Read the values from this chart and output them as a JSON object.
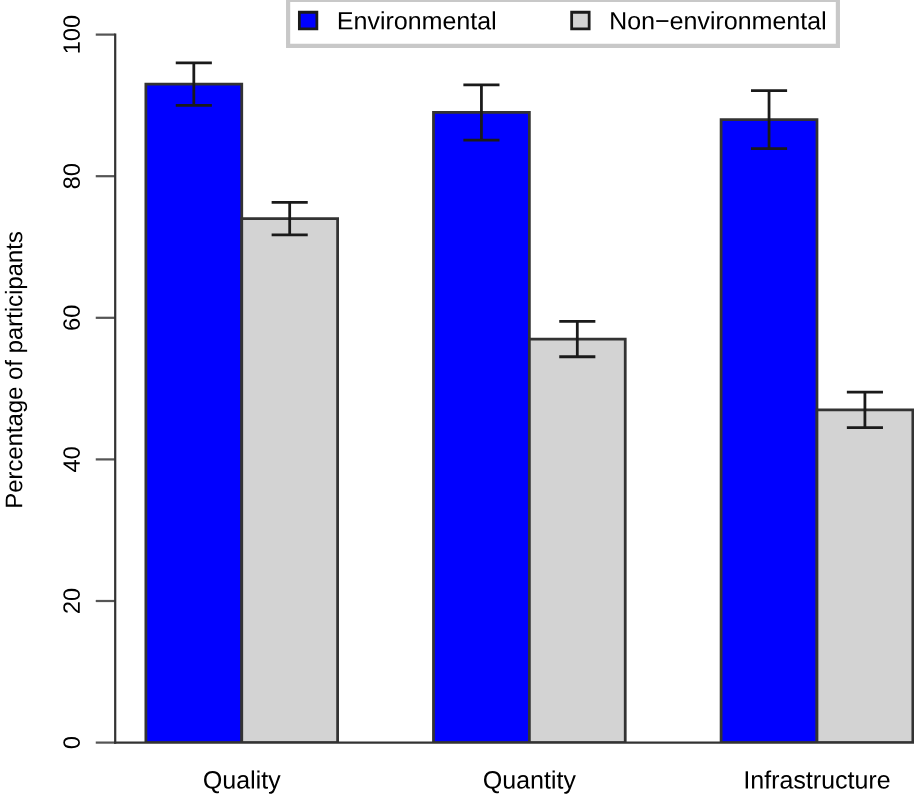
{
  "chart_data": {
    "type": "bar",
    "ylabel": "Percentage of participants",
    "categories": [
      "Quality",
      "Quantity",
      "Infrastructure"
    ],
    "series": [
      {
        "name": "Environmental",
        "color": "#0000ff",
        "values": [
          93,
          89,
          88
        ],
        "errors": [
          3,
          3.9,
          4.1
        ]
      },
      {
        "name": "Non−environmental",
        "color": "#d3d3d3",
        "values": [
          74,
          57,
          47
        ],
        "errors": [
          2.3,
          2.5,
          2.5
        ]
      }
    ],
    "ylim": [
      0,
      100
    ],
    "yticks": [
      0,
      20,
      40,
      60,
      80,
      100
    ],
    "grid": false,
    "legend": "top"
  }
}
